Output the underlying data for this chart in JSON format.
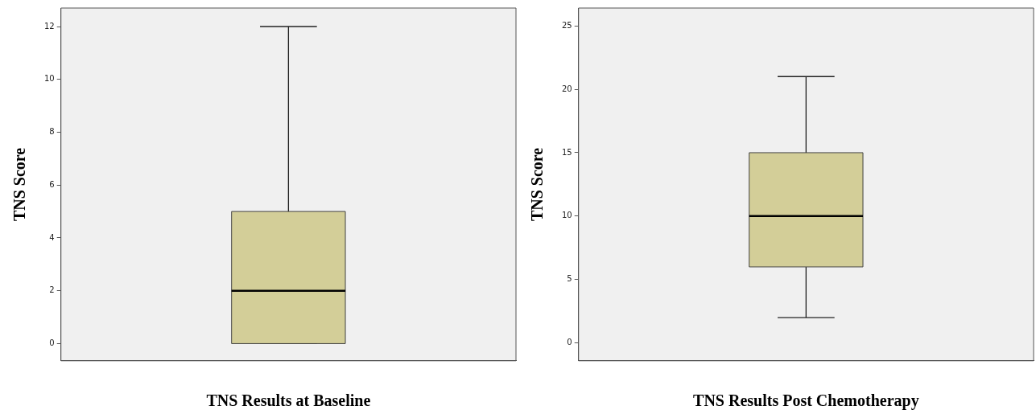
{
  "chart_data": [
    {
      "type": "box",
      "categories": [
        null
      ],
      "xlabel": "TNS Results at Baseline",
      "ylabel": "TNS Score",
      "ylim": [
        -0.65,
        12.7
      ],
      "yticks": [
        0,
        2,
        4,
        6,
        8,
        10,
        12
      ],
      "color": "#d3ce98",
      "boxes": [
        {
          "low": 0,
          "q1": 0,
          "median": 2,
          "q3": 5,
          "high": 12
        }
      ]
    },
    {
      "type": "box",
      "categories": [
        null
      ],
      "xlabel": "TNS Results Post Chemotherapy",
      "ylabel": "TNS Score",
      "ylim": [
        -1.4,
        26.4
      ],
      "yticks": [
        0,
        5,
        10,
        15,
        20,
        25
      ],
      "color": "#d3ce98",
      "boxes": [
        {
          "low": 2,
          "q1": 6,
          "median": 10,
          "q3": 15,
          "high": 21
        }
      ]
    }
  ]
}
